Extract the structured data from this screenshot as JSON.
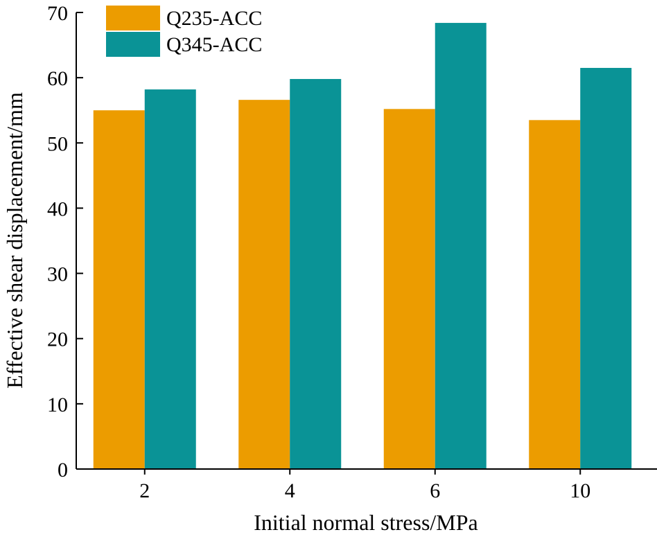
{
  "chart_data": {
    "type": "bar",
    "title": "",
    "xlabel": "Initial normal stress/MPa",
    "ylabel": "Effective shear displacement/mm",
    "categories": [
      "2",
      "4",
      "6",
      "10"
    ],
    "series": [
      {
        "name": "Q235-ACC",
        "color": "#EC9C00",
        "values": [
          55.0,
          56.6,
          55.2,
          53.5
        ]
      },
      {
        "name": "Q345-ACC",
        "color": "#0A9396",
        "values": [
          58.2,
          59.8,
          68.4,
          61.5
        ]
      }
    ],
    "ylim": [
      0,
      70
    ],
    "yticks": [
      0,
      10,
      20,
      30,
      40,
      50,
      60,
      70
    ],
    "grid": false,
    "legend_position": "top-left"
  }
}
